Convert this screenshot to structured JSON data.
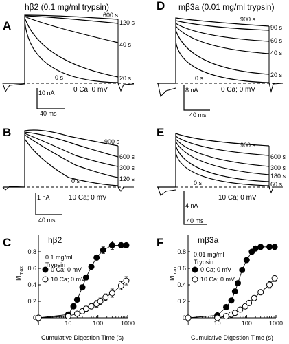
{
  "panels": {
    "A": {
      "letter": "A",
      "title": "hβ2 (0.1 mg/ml trypsin)",
      "times": [
        "600 s",
        "120 s",
        "40 s",
        "20 s",
        "0 s"
      ],
      "scale_i": "10 nA",
      "scale_t": "40 ms",
      "condition": "0 Ca; 0 mV"
    },
    "B": {
      "letter": "B",
      "times": [
        "900 s",
        "600 s",
        "300 s",
        "120 s",
        "0 s"
      ],
      "scale_i": "1 nA",
      "scale_t": "40 ms",
      "condition": "10 Ca; 0 mV"
    },
    "D": {
      "letter": "D",
      "title": "mβ3a (0.01 mg/ml trypsin)",
      "times": [
        "900 s",
        "90 s",
        "60 s",
        "40 s",
        "20 s",
        "0 s"
      ],
      "scale_i": "8 nA",
      "scale_t": "40 ms",
      "condition": "0 Ca; 0 mV"
    },
    "E": {
      "letter": "E",
      "times": [
        "900 s",
        "600 s",
        "300 s",
        "180 s",
        "60 s",
        "0 s"
      ],
      "scale_i": "4 nA",
      "scale_t": "40 ms",
      "condition": "10 Ca; 0 mV"
    },
    "C": {
      "letter": "C",
      "title": "hβ2",
      "note": [
        "0.1 mg/ml",
        "Trypsin"
      ]
    },
    "F": {
      "letter": "F",
      "title": "mβ3a",
      "note": [
        "0.01 mg/ml",
        "Trypsin"
      ]
    }
  },
  "chart_data": [
    {
      "type": "scatter",
      "panel": "C",
      "title": "hβ2",
      "xlabel": "Cumulative Digestion Time (s)",
      "ylabel": "I/I",
      "ylabel_sub": "max",
      "xscale": "log",
      "xlim": [
        1,
        1000
      ],
      "ylim": [
        0,
        1
      ],
      "xticks": [
        1,
        10,
        100,
        1000
      ],
      "yticks": [
        0,
        0.2,
        0.4,
        0.6,
        0.8
      ],
      "series": [
        {
          "name": "0 Ca; 0 mV",
          "marker": "filled",
          "x": [
            1,
            10,
            15,
            20,
            30,
            40,
            60,
            90,
            150,
            300,
            600,
            900
          ],
          "y": [
            0,
            0.04,
            0.14,
            0.22,
            0.37,
            0.49,
            0.62,
            0.73,
            0.82,
            0.88,
            0.88,
            0.88
          ],
          "err": [
            0,
            0.01,
            0.02,
            0.02,
            0.03,
            0.03,
            0.03,
            0.03,
            0.04,
            0.05,
            0.03,
            0.02
          ]
        },
        {
          "name": "10 Ca; 0 mV",
          "marker": "open",
          "x": [
            1,
            10,
            20,
            30,
            40,
            60,
            90,
            120,
            180,
            300,
            600,
            900
          ],
          "y": [
            0,
            0.02,
            0.05,
            0.08,
            0.11,
            0.14,
            0.17,
            0.2,
            0.25,
            0.3,
            0.39,
            0.45
          ],
          "err": [
            0,
            0.01,
            0.02,
            0.02,
            0.03,
            0.03,
            0.04,
            0.04,
            0.04,
            0.05,
            0.05,
            0.05
          ]
        }
      ]
    },
    {
      "type": "scatter",
      "panel": "F",
      "title": "mβ3a",
      "xlabel": "Cumulative Digestion Time (s)",
      "ylabel": "I/I",
      "ylabel_sub": "max",
      "xscale": "log",
      "xlim": [
        1,
        1000
      ],
      "ylim": [
        0,
        1
      ],
      "xticks": [
        1,
        10,
        100,
        1000
      ],
      "yticks": [
        0,
        0.2,
        0.4,
        0.6,
        0.8
      ],
      "series": [
        {
          "name": "0 Ca; 0 mV",
          "marker": "filled",
          "x": [
            1,
            10,
            20,
            30,
            40,
            50,
            70,
            100,
            150,
            200,
            300,
            600,
            900
          ],
          "y": [
            0,
            0.03,
            0.13,
            0.21,
            0.32,
            0.42,
            0.58,
            0.7,
            0.8,
            0.84,
            0.86,
            0.86,
            0.86
          ],
          "err": [
            0,
            0.01,
            0.01,
            0.02,
            0.02,
            0.02,
            0.02,
            0.02,
            0.02,
            0.02,
            0.02,
            0.02,
            0.02
          ]
        },
        {
          "name": "10 Ca; 0 mV",
          "marker": "open",
          "x": [
            1,
            10,
            20,
            30,
            40,
            60,
            90,
            120,
            180,
            300,
            600,
            900
          ],
          "y": [
            0,
            0.0,
            0.02,
            0.04,
            0.06,
            0.1,
            0.14,
            0.18,
            0.24,
            0.31,
            0.4,
            0.48
          ],
          "err": [
            0,
            0.0,
            0.01,
            0.01,
            0.01,
            0.02,
            0.02,
            0.02,
            0.03,
            0.03,
            0.04,
            0.04
          ]
        }
      ]
    }
  ]
}
